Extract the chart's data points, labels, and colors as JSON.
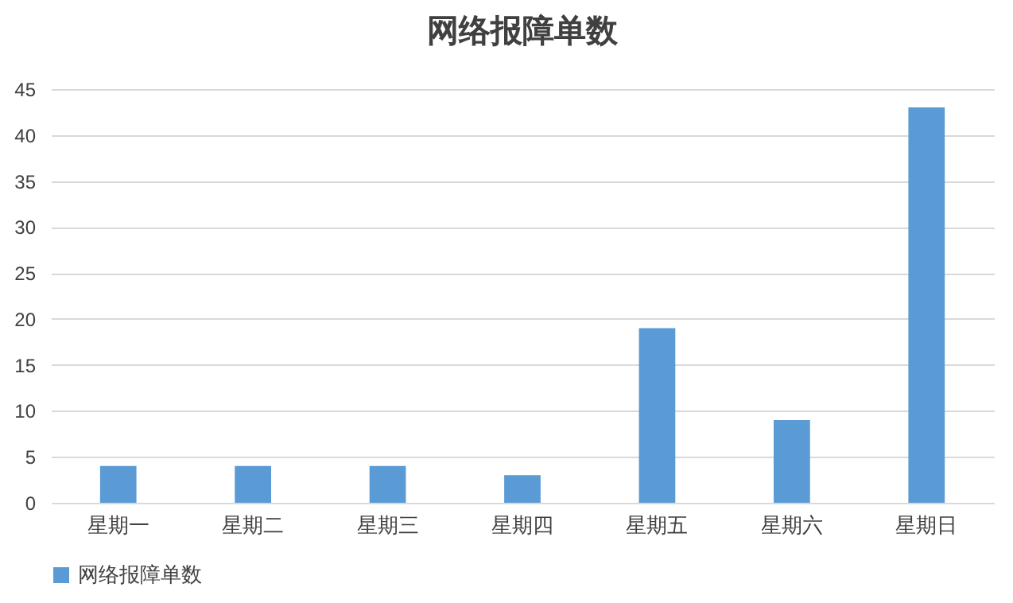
{
  "chart_data": {
    "type": "bar",
    "title": "网络报障单数",
    "categories": [
      "星期一",
      "星期二",
      "星期三",
      "星期四",
      "星期五",
      "星期六",
      "星期日"
    ],
    "series": [
      {
        "name": "网络报障单数",
        "color": "#5b9bd5",
        "values": [
          4,
          4,
          4,
          3,
          19,
          9,
          43
        ]
      }
    ],
    "ylim": [
      0,
      45
    ],
    "yticks": [
      0,
      5,
      10,
      15,
      20,
      25,
      30,
      35,
      40,
      45
    ],
    "grid": "y",
    "legend": "bottom"
  }
}
